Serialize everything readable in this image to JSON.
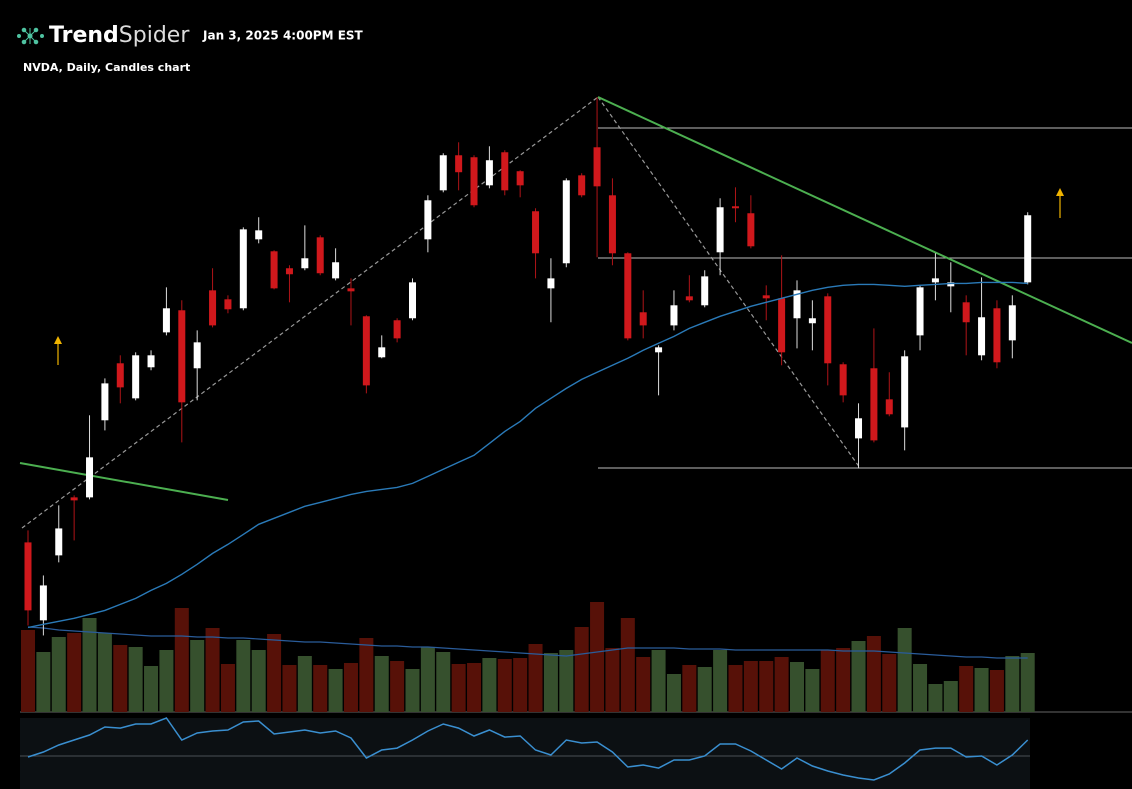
{
  "header": {
    "brand": [
      "Trend",
      "Spider"
    ],
    "timestamp": "Jan 3, 2025 4:00PM EST"
  },
  "chart_data": {
    "type": "candlestick",
    "title": "NVDA, Daily, Candles chart",
    "up_color": "#ffffff",
    "down_color": "#d0181c",
    "ylim": [
      114.8,
      153.4
    ],
    "open": [
      121.65,
      116.18,
      120.74,
      124.81,
      124.81,
      130.22,
      134.22,
      131.76,
      133.94,
      136.39,
      137.94,
      133.87,
      139.34,
      138.71,
      138.08,
      142.92,
      142.08,
      140.89,
      140.89,
      143.06,
      140.18,
      139.48,
      137.52,
      134.64,
      137.24,
      137.38,
      142.92,
      146.36,
      148.82,
      148.68,
      146.71,
      149.03,
      147.7,
      144.89,
      139.48,
      141.24,
      147.41,
      149.38,
      146.01,
      141.94,
      137.8,
      134.99,
      136.88,
      138.92,
      138.29,
      142.01,
      145.24,
      144.75,
      138.99,
      138.78,
      137.38,
      137.03,
      138.92,
      134.15,
      128.95,
      133.87,
      131.69,
      129.72,
      136.18,
      139.9,
      139.62,
      138.5,
      134.78,
      138.08,
      135.83,
      139.9
    ],
    "high": [
      122.49,
      119.33,
      124.25,
      124.95,
      130.57,
      133.16,
      134.78,
      134.99,
      135.13,
      139.55,
      138.64,
      136.53,
      140.89,
      138.99,
      143.76,
      144.47,
      142.15,
      141.1,
      143.9,
      143.2,
      142.29,
      140.18,
      137.59,
      136.18,
      137.38,
      140.18,
      146.01,
      148.96,
      149.73,
      148.82,
      149.45,
      149.17,
      147.77,
      145.1,
      141.59,
      147.2,
      147.56,
      152.89,
      147.2,
      142.01,
      139.34,
      135.48,
      139.34,
      140.4,
      140.75,
      145.8,
      146.57,
      146.01,
      139.69,
      141.8,
      140.04,
      138.64,
      139.13,
      134.29,
      131.41,
      136.67,
      133.59,
      135.13,
      139.69,
      141.94,
      141.31,
      138.99,
      140.25,
      138.64,
      138.99,
      144.82
    ],
    "low": [
      115.82,
      115.12,
      120.25,
      121.79,
      124.67,
      129.51,
      131.41,
      131.62,
      133.73,
      136.18,
      128.67,
      131.62,
      136.74,
      137.73,
      137.94,
      142.64,
      139.41,
      138.5,
      140.75,
      140.4,
      140.04,
      136.88,
      132.11,
      134.57,
      135.69,
      137.24,
      142.01,
      146.22,
      146.36,
      145.17,
      146.5,
      146.01,
      145.87,
      140.18,
      137.1,
      140.96,
      145.87,
      141.66,
      141.1,
      135.83,
      135.97,
      131.97,
      136.53,
      138.5,
      138.15,
      140.4,
      144.12,
      142.29,
      137.24,
      134.08,
      135.27,
      135.13,
      132.67,
      131.48,
      126.85,
      128.67,
      130.5,
      128.11,
      135.13,
      138.64,
      137.8,
      134.78,
      134.43,
      133.87,
      134.57,
      139.76
    ],
    "close": [
      116.88,
      118.63,
      122.63,
      124.6,
      127.62,
      132.81,
      132.53,
      134.78,
      134.78,
      138.08,
      131.48,
      135.69,
      136.88,
      138.01,
      143.62,
      143.55,
      139.48,
      140.47,
      141.59,
      140.54,
      141.31,
      139.27,
      132.67,
      135.34,
      135.97,
      139.9,
      145.66,
      148.82,
      147.63,
      145.31,
      148.47,
      146.36,
      146.71,
      141.94,
      140.18,
      147.06,
      146.01,
      146.64,
      141.94,
      135.97,
      136.88,
      135.34,
      138.29,
      138.64,
      140.32,
      145.17,
      145.1,
      142.43,
      138.78,
      134.99,
      139.34,
      137.38,
      134.22,
      131.97,
      130.36,
      128.81,
      130.64,
      134.71,
      139.55,
      140.18,
      139.9,
      137.1,
      137.45,
      134.29,
      138.29,
      144.61
    ],
    "moving_average": {
      "color": "#2a7ab8",
      "values": [
        115.68,
        115.9,
        116.11,
        116.32,
        116.6,
        116.88,
        117.3,
        117.72,
        118.28,
        118.77,
        119.41,
        120.11,
        120.88,
        121.51,
        122.21,
        122.92,
        123.34,
        123.76,
        124.18,
        124.46,
        124.74,
        125.02,
        125.23,
        125.37,
        125.51,
        125.79,
        126.28,
        126.78,
        127.27,
        127.76,
        128.6,
        129.44,
        130.14,
        131.06,
        131.76,
        132.46,
        133.09,
        133.59,
        134.08,
        134.57,
        135.13,
        135.62,
        136.11,
        136.67,
        137.1,
        137.52,
        137.87,
        138.22,
        138.5,
        138.78,
        139.06,
        139.34,
        139.55,
        139.69,
        139.76,
        139.76,
        139.69,
        139.62,
        139.69,
        139.76,
        139.83,
        139.83,
        139.9,
        139.9,
        139.9,
        139.83
      ]
    },
    "volume": {
      "up_color": "#36502d",
      "down_color": "#571108",
      "ylim": [
        0,
        366
      ],
      "values": [
        246,
        180,
        225,
        237,
        282,
        237,
        201,
        195,
        138,
        186,
        312,
        216,
        252,
        144,
        216,
        186,
        234,
        141,
        168,
        141,
        129,
        147,
        222,
        168,
        153,
        129,
        195,
        180,
        144,
        147,
        162,
        159,
        162,
        204,
        177,
        186,
        255,
        330,
        192,
        282,
        165,
        186,
        114,
        141,
        135,
        186,
        141,
        153,
        153,
        165,
        150,
        129,
        186,
        192,
        213,
        228,
        174,
        252,
        144,
        84,
        93,
        138,
        132,
        126,
        168,
        177
      ],
      "moving_average": {
        "color": "#2a5c9a",
        "values": [
          255,
          252,
          246,
          243,
          240,
          237,
          234,
          231,
          228,
          228,
          228,
          225,
          225,
          222,
          222,
          219,
          216,
          213,
          210,
          210,
          207,
          204,
          201,
          198,
          198,
          195,
          195,
          192,
          189,
          186,
          183,
          180,
          177,
          174,
          171,
          168,
          174,
          180,
          186,
          192,
          192,
          192,
          192,
          189,
          189,
          189,
          186,
          186,
          186,
          186,
          186,
          186,
          186,
          183,
          183,
          183,
          180,
          177,
          174,
          171,
          168,
          165,
          165,
          162,
          162,
          162
        ]
      }
    },
    "oscillator": {
      "color": "#3a8fd0",
      "ylim": [
        20,
        80
      ],
      "values": [
        47.0,
        51.3,
        57.2,
        61.4,
        65.6,
        72.4,
        71.5,
        74.9,
        74.9,
        80.0,
        61.4,
        67.3,
        69.0,
        69.9,
        76.6,
        77.5,
        66.5,
        68.2,
        69.9,
        67.3,
        69.0,
        63.1,
        46.2,
        53.0,
        54.6,
        61.4,
        69.0,
        74.9,
        71.5,
        64.8,
        69.9,
        63.9,
        64.8,
        53.0,
        48.7,
        61.4,
        58.9,
        59.7,
        51.3,
        38.6,
        40.3,
        37.7,
        44.5,
        44.5,
        47.9,
        58.0,
        58.0,
        52.1,
        44.5,
        36.9,
        46.2,
        39.4,
        35.2,
        31.8,
        29.3,
        27.6,
        32.7,
        42.0,
        53.0,
        54.6,
        54.6,
        47.0,
        47.9,
        40.3,
        48.7,
        61.4
      ]
    }
  }
}
